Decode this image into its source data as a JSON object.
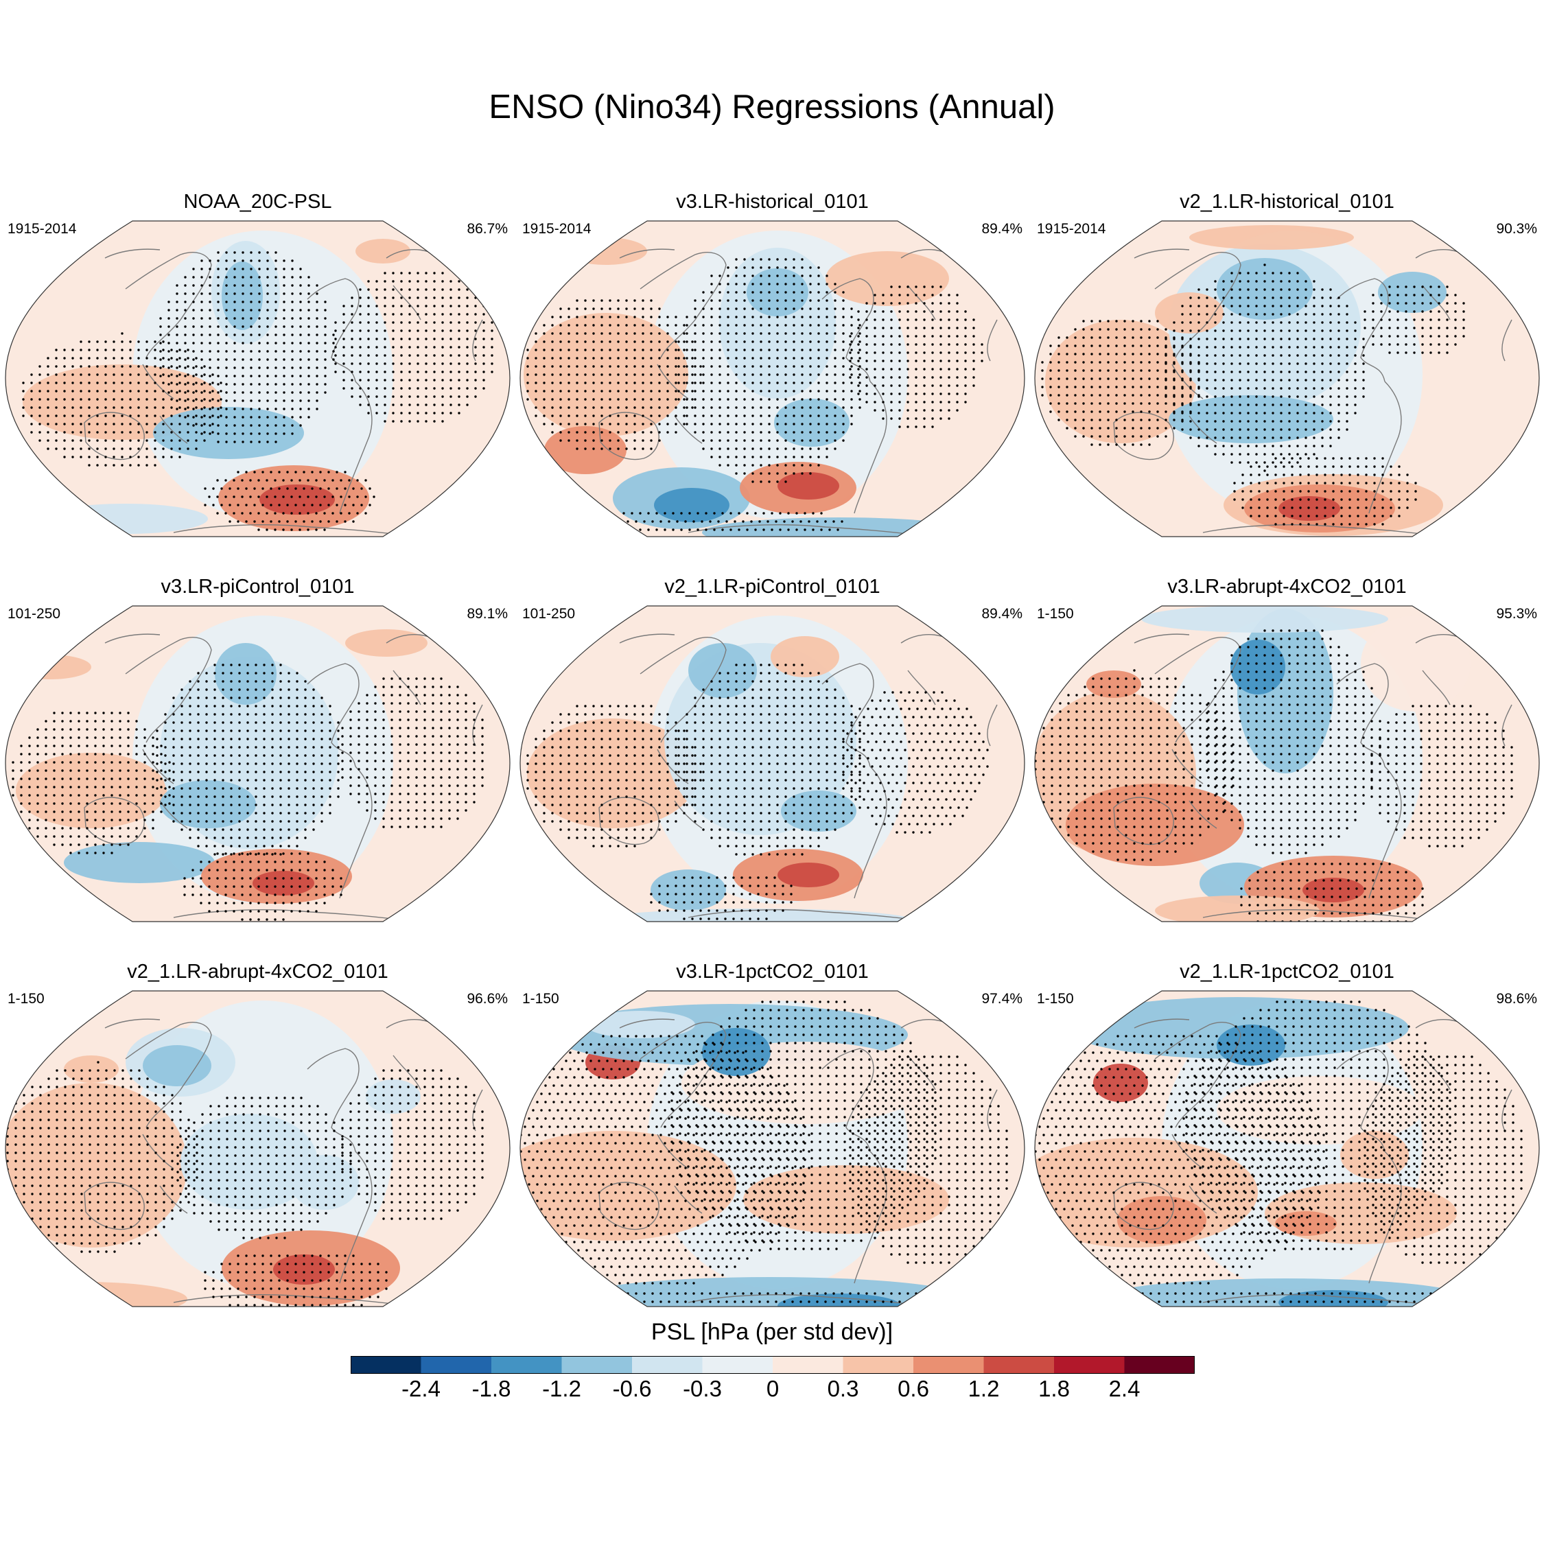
{
  "title": "ENSO (Nino34) Regressions (Annual)",
  "colors": {
    "scale": [
      "#053061",
      "#2166ac",
      "#4393c3",
      "#92c5de",
      "#d1e5f0",
      "#e9f0f4",
      "#fbe9df",
      "#f7c4a9",
      "#ea9072",
      "#cc4c43",
      "#b2182b",
      "#67001f"
    ],
    "coast": "#7a7a7a",
    "outline": "#333333",
    "stipple": "#000000"
  },
  "panels": [
    {
      "title": "NOAA_20C-PSL",
      "period": "1915-2014",
      "pct": "86.7%"
    },
    {
      "title": "v3.LR-historical_0101",
      "period": "1915-2014",
      "pct": "89.4%"
    },
    {
      "title": "v2_1.LR-historical_0101",
      "period": "1915-2014",
      "pct": "90.3%"
    },
    {
      "title": "v3.LR-piControl_0101",
      "period": "101-250",
      "pct": "89.1%"
    },
    {
      "title": "v2_1.LR-piControl_0101",
      "period": "101-250",
      "pct": "89.4%"
    },
    {
      "title": "v3.LR-abrupt-4xCO2_0101",
      "period": "1-150",
      "pct": "95.3%"
    },
    {
      "title": "v2_1.LR-abrupt-4xCO2_0101",
      "period": "1-150",
      "pct": "96.6%"
    },
    {
      "title": "v3.LR-1pctCO2_0101",
      "period": "1-150",
      "pct": "97.4%"
    },
    {
      "title": "v2_1.LR-1pctCO2_0101",
      "period": "1-150",
      "pct": "98.6%"
    }
  ],
  "colorbar": {
    "title": "PSL [hPa (per std dev)]",
    "labels": [
      "-2.4",
      "-1.8",
      "-1.2",
      "-0.6",
      "-0.3",
      "0",
      "0.3",
      "0.6",
      "1.2",
      "1.8",
      "2.4"
    ]
  }
}
